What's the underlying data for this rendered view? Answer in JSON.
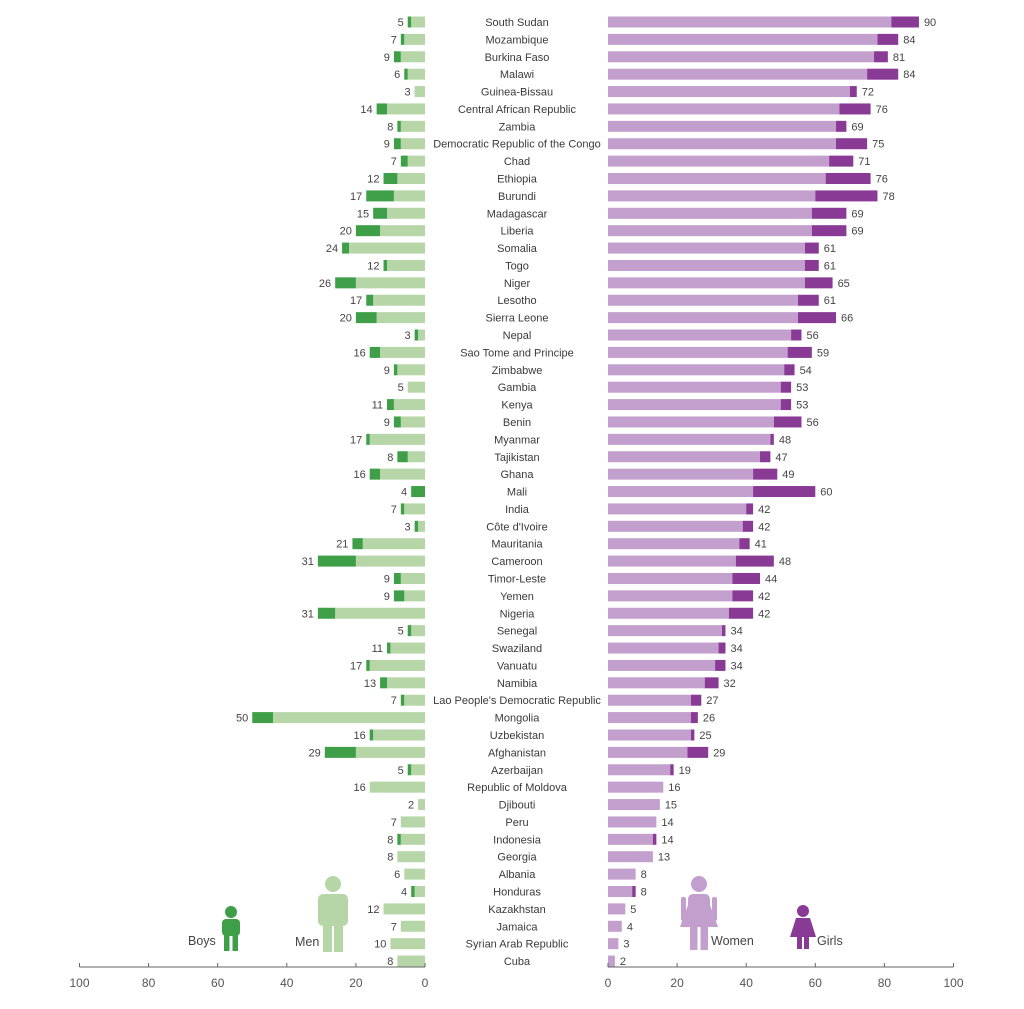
{
  "chart_data": {
    "type": "bar",
    "orientation": "horizontal, mirrored (left and right panels)",
    "colors": {
      "men": "#b6d6a8",
      "boys": "#3f9f48",
      "women": "#c39fcd",
      "girls": "#883a95"
    },
    "legend": {
      "boys": "Boys",
      "men": "Men",
      "women": "Women",
      "girls": "Girls",
      "placement": "bottom, drawn as person icons"
    },
    "left_axis": {
      "range": [
        0,
        100
      ],
      "direction": "reversed",
      "ticks": [
        "100",
        "80",
        "60",
        "40",
        "20",
        "0"
      ]
    },
    "right_axis": {
      "range": [
        0,
        100
      ],
      "ticks": [
        "0",
        "20",
        "40",
        "60",
        "80",
        "100"
      ]
    },
    "grid": false,
    "columns": [
      "country",
      "men",
      "boys",
      "men_label",
      "women",
      "girls",
      "women_label"
    ],
    "rows": [
      [
        "South Sudan",
        4,
        1,
        "5",
        82,
        8,
        "90"
      ],
      [
        "Mozambique",
        6,
        1,
        "7",
        78,
        6,
        "84"
      ],
      [
        "Burkina Faso",
        7,
        2,
        "9",
        77,
        4,
        "81"
      ],
      [
        "Malawi",
        5,
        1,
        "6",
        75,
        9,
        "84"
      ],
      [
        "Guinea-Bissau",
        3,
        0,
        "3",
        70,
        2,
        "72"
      ],
      [
        "Central African Republic",
        11,
        3,
        "14",
        67,
        9,
        "76"
      ],
      [
        "Zambia",
        7,
        1,
        "8",
        66,
        3,
        "69"
      ],
      [
        "Democratic Republic of the Congo",
        7,
        2,
        "9",
        66,
        9,
        "75"
      ],
      [
        "Chad",
        5,
        2,
        "7",
        64,
        7,
        "71"
      ],
      [
        "Ethiopia",
        8,
        4,
        "12",
        63,
        13,
        "76"
      ],
      [
        "Burundi",
        9,
        8,
        "17",
        60,
        18,
        "78"
      ],
      [
        "Madagascar",
        11,
        4,
        "15",
        59,
        10,
        "69"
      ],
      [
        "Liberia",
        13,
        7,
        "20",
        59,
        10,
        "69"
      ],
      [
        "Somalia",
        22,
        2,
        "24",
        57,
        4,
        "61"
      ],
      [
        "Togo",
        11,
        1,
        "12",
        57,
        4,
        "61"
      ],
      [
        "Niger",
        20,
        6,
        "26",
        57,
        8,
        "65"
      ],
      [
        "Lesotho",
        15,
        2,
        "17",
        55,
        6,
        "61"
      ],
      [
        "Sierra Leone",
        14,
        6,
        "20",
        55,
        11,
        "66"
      ],
      [
        "Nepal",
        2,
        1,
        "3",
        53,
        3,
        "56"
      ],
      [
        "Sao Tome and Principe",
        13,
        3,
        "16",
        52,
        7,
        "59"
      ],
      [
        "Zimbabwe",
        8,
        1,
        "9",
        51,
        3,
        "54"
      ],
      [
        "Gambia",
        5,
        0,
        "5",
        50,
        3,
        "53"
      ],
      [
        "Kenya",
        9,
        2,
        "11",
        50,
        3,
        "53"
      ],
      [
        "Benin",
        7,
        2,
        "9",
        48,
        8,
        "56"
      ],
      [
        "Myanmar",
        16,
        1,
        "17",
        47,
        1,
        "48"
      ],
      [
        "Tajikistan",
        5,
        3,
        "8",
        44,
        3,
        "47"
      ],
      [
        "Ghana",
        13,
        3,
        "16",
        42,
        7,
        "49"
      ],
      [
        "Mali",
        0,
        4,
        "4",
        42,
        18,
        "60"
      ],
      [
        "India",
        6,
        1,
        "7",
        40,
        2,
        "42"
      ],
      [
        "Côte d'Ivoire",
        2,
        1,
        "3",
        39,
        3,
        "42"
      ],
      [
        "Mauritania",
        18,
        3,
        "21",
        38,
        3,
        "41"
      ],
      [
        "Cameroon",
        20,
        11,
        "31",
        37,
        11,
        "48"
      ],
      [
        "Timor-Leste",
        7,
        2,
        "9",
        36,
        8,
        "44"
      ],
      [
        "Yemen",
        6,
        3,
        "9",
        36,
        6,
        "42"
      ],
      [
        "Nigeria",
        26,
        5,
        "31",
        35,
        7,
        "42"
      ],
      [
        "Senegal",
        4,
        1,
        "5",
        33,
        1,
        "34"
      ],
      [
        "Swaziland",
        10,
        1,
        "11",
        32,
        2,
        "34"
      ],
      [
        "Vanuatu",
        16,
        1,
        "17",
        31,
        3,
        "34"
      ],
      [
        "Namibia",
        11,
        2,
        "13",
        28,
        4,
        "32"
      ],
      [
        "Lao People's  Democratic Republic",
        6,
        1,
        "7",
        24,
        3,
        "27"
      ],
      [
        "Mongolia",
        44,
        6,
        "50",
        24,
        2,
        "26"
      ],
      [
        "Uzbekistan",
        15,
        1,
        "16",
        24,
        1,
        "25"
      ],
      [
        "Afghanistan",
        20,
        9,
        "29",
        23,
        6,
        "29"
      ],
      [
        "Azerbaijan",
        4,
        1,
        "5",
        18,
        1,
        "19"
      ],
      [
        "Republic of Moldova",
        16,
        0,
        "16",
        16,
        0,
        "16"
      ],
      [
        "Djibouti",
        2,
        0,
        "2",
        15,
        0,
        "15"
      ],
      [
        "Peru",
        7,
        0,
        "7",
        14,
        0,
        "14"
      ],
      [
        "Indonesia",
        7,
        1,
        "8",
        13,
        1,
        "14"
      ],
      [
        "Georgia",
        8,
        0,
        "8",
        13,
        0,
        "13"
      ],
      [
        "Albania",
        6,
        0,
        "6",
        8,
        0,
        "8"
      ],
      [
        "Honduras",
        3,
        1,
        "4",
        7,
        1,
        "8"
      ],
      [
        "Kazakhstan",
        12,
        0,
        "12",
        5,
        0,
        "5"
      ],
      [
        "Jamaica",
        7,
        0,
        "7",
        4,
        0,
        "4"
      ],
      [
        "Syrian Arab Republic",
        10,
        0,
        "10",
        3,
        0,
        "3"
      ],
      [
        "Cuba",
        8,
        0,
        "8",
        2,
        0,
        "2"
      ]
    ]
  }
}
